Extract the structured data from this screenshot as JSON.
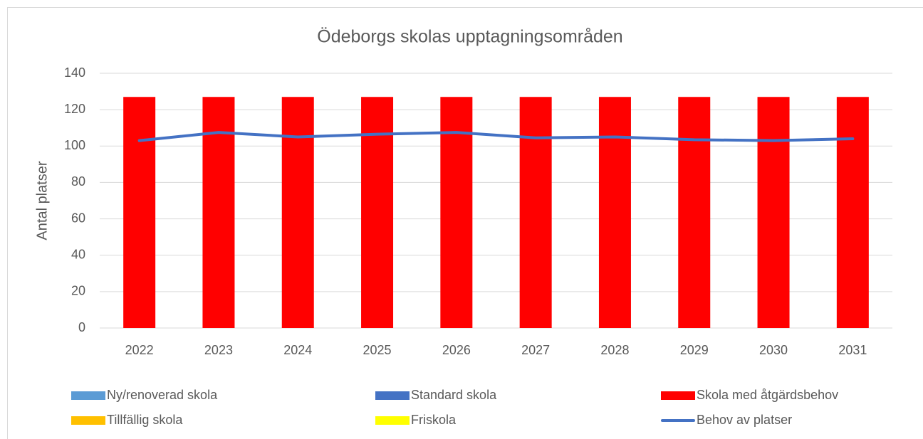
{
  "chart_data": {
    "type": "bar",
    "stacked": true,
    "title": "Ödeborgs skolas upptagningsområden",
    "y_label": "Antal platser",
    "categories": [
      "2022",
      "2023",
      "2024",
      "2025",
      "2026",
      "2027",
      "2028",
      "2029",
      "2030",
      "2031"
    ],
    "series": [
      {
        "name": "Ny/renoverad skola",
        "color": "#5b9bd5",
        "type": "bar",
        "values": [
          0,
          0,
          0,
          0,
          0,
          0,
          0,
          0,
          0,
          0
        ]
      },
      {
        "name": "Standard skola",
        "color": "#4472c4",
        "type": "bar",
        "values": [
          0,
          0,
          0,
          0,
          0,
          0,
          0,
          0,
          0,
          0
        ]
      },
      {
        "name": "Skola med åtgärdsbehov",
        "color": "#ff0000",
        "type": "bar",
        "values": [
          127,
          127,
          127,
          127,
          127,
          127,
          127,
          127,
          127,
          127
        ]
      },
      {
        "name": "Tillfällig skola",
        "color": "#ffc000",
        "type": "bar",
        "values": [
          0,
          0,
          0,
          0,
          0,
          0,
          0,
          0,
          0,
          0
        ]
      },
      {
        "name": "Friskola",
        "color": "#ffff00",
        "type": "bar",
        "values": [
          0,
          0,
          0,
          0,
          0,
          0,
          0,
          0,
          0,
          0
        ]
      },
      {
        "name": "Behov av platser",
        "color": "#4472c4",
        "type": "line",
        "values": [
          103,
          107.5,
          105,
          106.5,
          107.5,
          104.5,
          105,
          103.5,
          103,
          104
        ]
      }
    ],
    "ylim": [
      0,
      140
    ],
    "yticks": [
      0,
      20,
      40,
      60,
      80,
      100,
      120,
      140
    ],
    "grid": true,
    "legend": "bottom"
  }
}
